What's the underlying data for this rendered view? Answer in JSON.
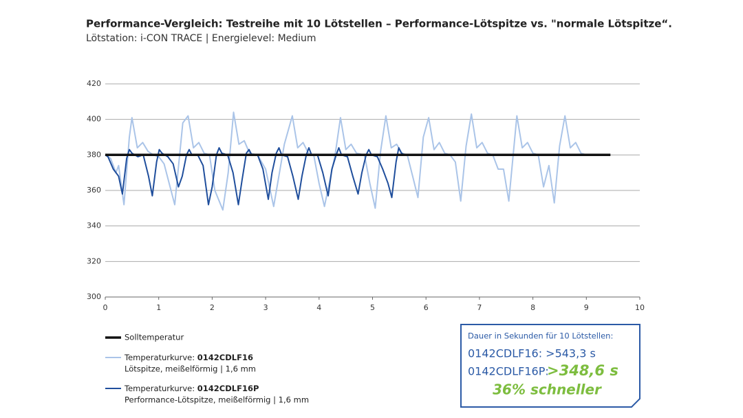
{
  "chart_data": {
    "type": "line",
    "title": "Performance-Vergleich: Testreihe mit 10 Lötstellen – Performance-Lötspitze vs. \"normale Lötspitze“.",
    "subtitle": "Lötstation: i-CON TRACE | Energielevel: Medium",
    "xlim": [
      0,
      10
    ],
    "xticks": [
      0,
      1,
      2,
      3,
      4,
      5,
      6,
      7,
      8,
      9,
      10
    ],
    "ylim": [
      300,
      420
    ],
    "yticks": [
      300,
      320,
      340,
      360,
      380,
      400,
      420
    ],
    "grid": true,
    "series": [
      {
        "name": "Temperaturkurve: 0142CDLF16",
        "description": "Lötspitze, meißelförmig | 1,6 mm",
        "color": "#aac4e8",
        "x": [
          0,
          0.1,
          0.2,
          0.25,
          0.35,
          0.45,
          0.5,
          0.6,
          0.7,
          0.8,
          0.9,
          1.0,
          1.1,
          1.3,
          1.45,
          1.55,
          1.65,
          1.75,
          1.85,
          1.95,
          2.05,
          2.2,
          2.3,
          2.4,
          2.5,
          2.6,
          2.7,
          2.85,
          3.0,
          3.15,
          3.35,
          3.5,
          3.6,
          3.7,
          3.8,
          3.9,
          4.0,
          4.1,
          4.3,
          4.4,
          4.5,
          4.6,
          4.7,
          4.85,
          4.95,
          5.05,
          5.15,
          5.25,
          5.35,
          5.45,
          5.55,
          5.65,
          5.75,
          5.85,
          5.95,
          6.05,
          6.15,
          6.25,
          6.35,
          6.45,
          6.55,
          6.65,
          6.75,
          6.85,
          6.95,
          7.05,
          7.15,
          7.25,
          7.35,
          7.45,
          7.55,
          7.7,
          7.8,
          7.9,
          8.0,
          8.1,
          8.2,
          8.3,
          8.4,
          8.5,
          8.6,
          8.7,
          8.8,
          8.9,
          9.0,
          9.1
        ],
        "values": [
          380,
          378,
          370,
          374,
          352,
          390,
          401,
          384,
          387,
          382,
          380,
          379,
          375,
          352,
          398,
          402,
          384,
          387,
          381,
          380,
          360,
          349,
          370,
          404,
          386,
          388,
          381,
          380,
          372,
          351,
          386,
          402,
          384,
          387,
          381,
          380,
          364,
          351,
          380,
          401,
          383,
          386,
          381,
          380,
          364,
          350,
          382,
          402,
          384,
          386,
          381,
          380,
          368,
          356,
          390,
          401,
          383,
          387,
          381,
          380,
          376,
          354,
          385,
          403,
          384,
          387,
          381,
          380,
          372,
          372,
          354,
          402,
          384,
          387,
          381,
          380,
          362,
          374,
          353,
          385,
          402,
          384,
          387,
          381,
          380,
          380
        ]
      },
      {
        "name": "Temperaturkurve: 0142CDLF16P",
        "description": "Performance-Lötspitze, meißelförmig | 1,6 mm",
        "color": "#1f4e9c",
        "x": [
          0,
          0.05,
          0.15,
          0.25,
          0.32,
          0.4,
          0.45,
          0.5,
          0.61,
          0.71,
          0.81,
          0.88,
          0.96,
          1.01,
          1.06,
          1.17,
          1.27,
          1.37,
          1.44,
          1.52,
          1.57,
          1.62,
          1.73,
          1.83,
          1.93,
          2.0,
          2.08,
          2.13,
          2.18,
          2.29,
          2.39,
          2.49,
          2.56,
          2.64,
          2.69,
          2.74,
          2.85,
          2.95,
          3.05,
          3.12,
          3.2,
          3.25,
          3.3,
          3.41,
          3.51,
          3.61,
          3.68,
          3.76,
          3.81,
          3.86,
          3.97,
          4.07,
          4.17,
          4.24,
          4.32,
          4.37,
          4.42,
          4.53,
          4.63,
          4.73,
          4.8,
          4.88,
          4.93,
          4.98,
          5.09,
          5.19,
          5.29,
          5.36,
          5.44,
          5.49,
          5.54,
          5.6,
          5.7
        ],
        "values": [
          380,
          379,
          372,
          368,
          358,
          378,
          383,
          381,
          379,
          380,
          368,
          357,
          376,
          383,
          381,
          379,
          375,
          362,
          368,
          380,
          383,
          380,
          380,
          374,
          352,
          362,
          380,
          384,
          381,
          380,
          370,
          352,
          366,
          381,
          383,
          380,
          380,
          372,
          355,
          370,
          381,
          384,
          380,
          379,
          368,
          355,
          368,
          380,
          384,
          380,
          380,
          370,
          357,
          372,
          380,
          384,
          380,
          379,
          368,
          358,
          370,
          380,
          383,
          380,
          379,
          372,
          364,
          356,
          376,
          384,
          381,
          380,
          380
        ]
      },
      {
        "name": "Solltemperatur",
        "color": "#111111",
        "x": [
          0,
          9.45
        ],
        "values": [
          380,
          380
        ]
      }
    ],
    "info_box": {
      "heading": "Dauer in Sekunden für 10 Lötstellen:",
      "line1": "0142CDLF16: >543,3 s",
      "line2_label": "0142CDLF16P:",
      "line2_value": ">348,6 s",
      "line3": "36% schneller"
    }
  }
}
